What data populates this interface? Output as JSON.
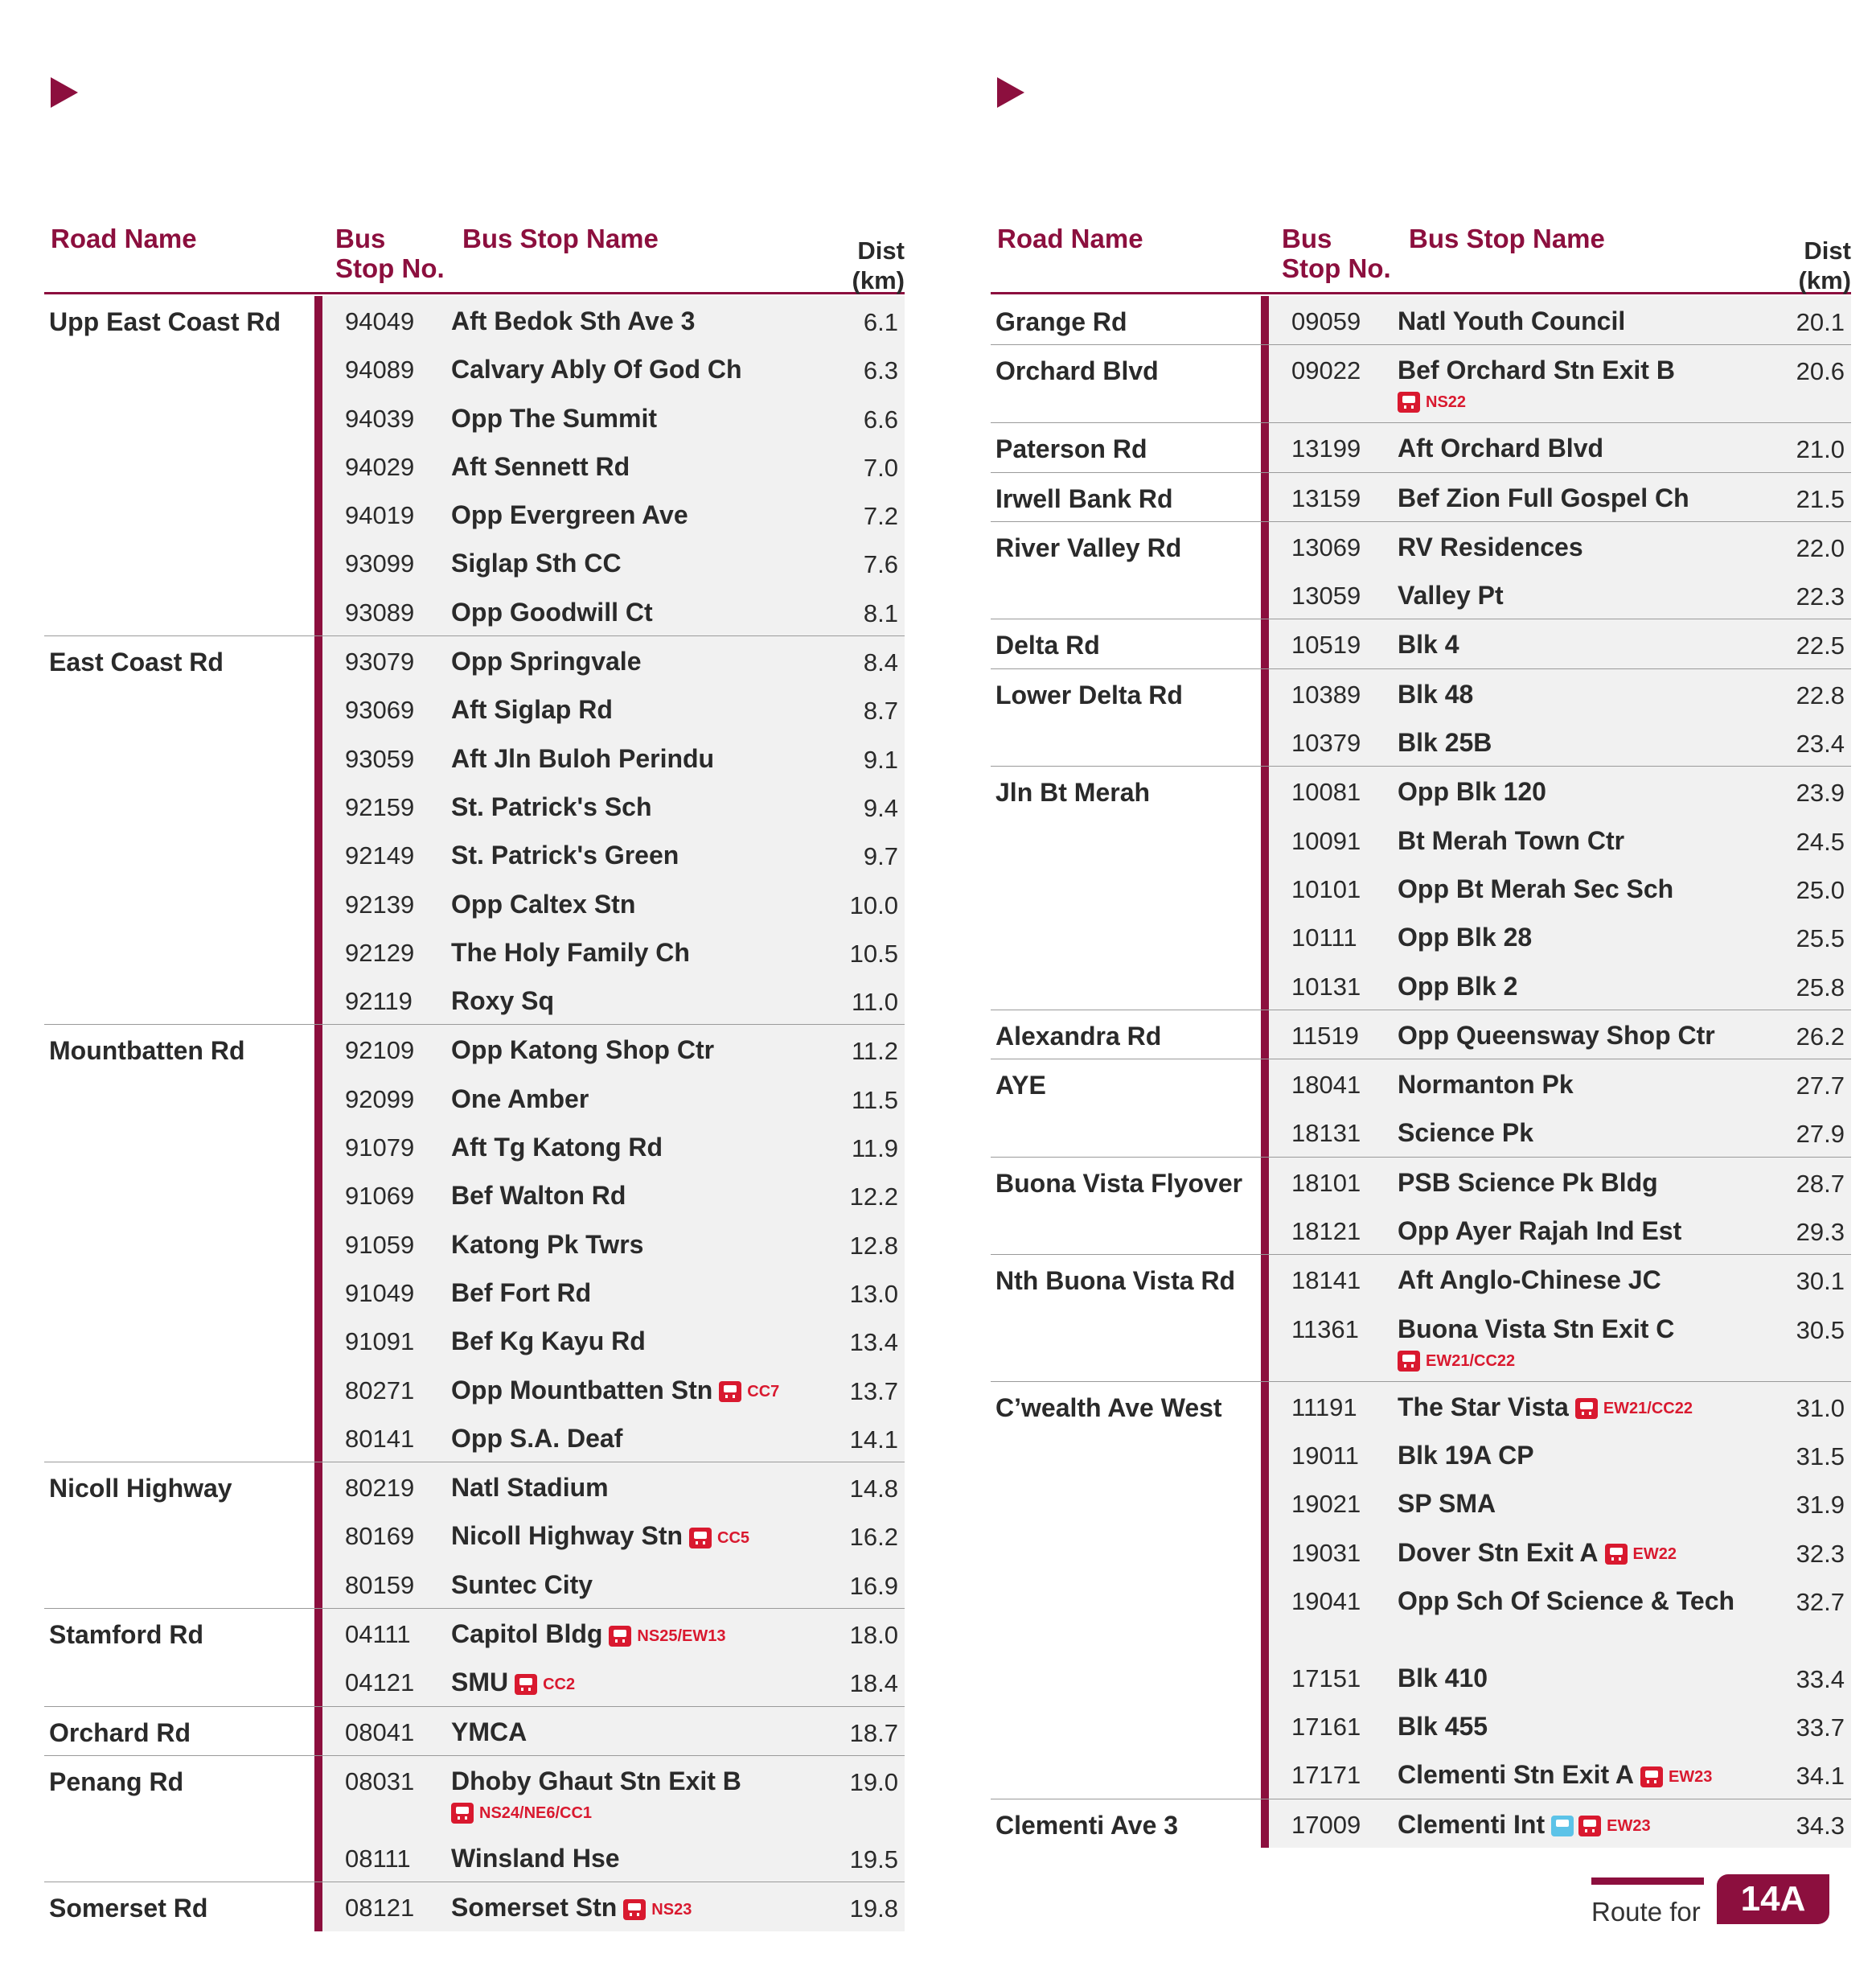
{
  "headers": {
    "road": "Road Name",
    "busno": "Bus\nStop No.",
    "stop": "Bus Stop Name",
    "dist": "Dist\n(km)"
  },
  "left": [
    {
      "road": "Upp East Coast Rd",
      "rows": [
        {
          "no": "94049",
          "name": "Aft Bedok Sth Ave 3",
          "dist": "6.1"
        },
        {
          "no": "94089",
          "name": "Calvary Ably Of God Ch",
          "dist": "6.3"
        },
        {
          "no": "94039",
          "name": "Opp The Summit",
          "dist": "6.6"
        },
        {
          "no": "94029",
          "name": "Aft Sennett Rd",
          "dist": "7.0"
        },
        {
          "no": "94019",
          "name": "Opp Evergreen Ave",
          "dist": "7.2"
        },
        {
          "no": "93099",
          "name": "Siglap Sth CC",
          "dist": "7.6"
        },
        {
          "no": "93089",
          "name": "Opp Goodwill Ct",
          "dist": "8.1"
        }
      ]
    },
    {
      "road": "East Coast Rd",
      "rows": [
        {
          "no": "93079",
          "name": "Opp Springvale",
          "dist": "8.4"
        },
        {
          "no": "93069",
          "name": "Aft Siglap Rd",
          "dist": "8.7"
        },
        {
          "no": "93059",
          "name": "Aft Jln Buloh Perindu",
          "dist": "9.1"
        },
        {
          "no": "92159",
          "name": "St. Patrick's Sch",
          "dist": "9.4"
        },
        {
          "no": "92149",
          "name": "St. Patrick's Green",
          "dist": "9.7"
        },
        {
          "no": "92139",
          "name": "Opp Caltex Stn",
          "dist": "10.0"
        },
        {
          "no": "92129",
          "name": "The Holy Family Ch",
          "dist": "10.5"
        },
        {
          "no": "92119",
          "name": "Roxy Sq",
          "dist": "11.0"
        }
      ]
    },
    {
      "road": "Mountbatten Rd",
      "rows": [
        {
          "no": "92109",
          "name": "Opp Katong Shop Ctr",
          "dist": "11.2"
        },
        {
          "no": "92099",
          "name": "One Amber",
          "dist": "11.5"
        },
        {
          "no": "91079",
          "name": "Aft Tg Katong Rd",
          "dist": "11.9"
        },
        {
          "no": "91069",
          "name": "Bef Walton Rd",
          "dist": "12.2"
        },
        {
          "no": "91059",
          "name": "Katong Pk Twrs",
          "dist": "12.8"
        },
        {
          "no": "91049",
          "name": "Bef Fort Rd",
          "dist": "13.0"
        },
        {
          "no": "91091",
          "name": "Bef Kg Kayu Rd",
          "dist": "13.4"
        },
        {
          "no": "80271",
          "name": "Opp Mountbatten Stn",
          "dist": "13.7",
          "mrt": "CC7"
        },
        {
          "no": "80141",
          "name": "Opp S.A. Deaf",
          "dist": "14.1"
        }
      ]
    },
    {
      "road": "Nicoll Highway",
      "rows": [
        {
          "no": "80219",
          "name": "Natl Stadium",
          "dist": "14.8"
        },
        {
          "no": "80169",
          "name": "Nicoll Highway Stn",
          "dist": "16.2",
          "mrt": "CC5"
        },
        {
          "no": "80159",
          "name": "Suntec City",
          "dist": "16.9"
        }
      ]
    },
    {
      "road": "Stamford Rd",
      "rows": [
        {
          "no": "04111",
          "name": "Capitol Bldg",
          "dist": "18.0",
          "mrt": "NS25/EW13"
        },
        {
          "no": "04121",
          "name": "SMU",
          "dist": "18.4",
          "mrt": "CC2"
        }
      ]
    },
    {
      "road": "Orchard Rd",
      "rows": [
        {
          "no": "08041",
          "name": "YMCA",
          "dist": "18.7"
        }
      ]
    },
    {
      "road": "Penang Rd",
      "rows": [
        {
          "no": "08031",
          "name": "Dhoby Ghaut Stn Exit B",
          "dist": "19.0",
          "mrt_sub": "NS24/NE6/CC1"
        },
        {
          "no": "08111",
          "name": "Winsland Hse",
          "dist": "19.5"
        }
      ]
    },
    {
      "road": "Somerset Rd",
      "rows": [
        {
          "no": "08121",
          "name": "Somerset Stn",
          "dist": "19.8",
          "mrt": "NS23"
        }
      ]
    }
  ],
  "right": [
    {
      "road": "Grange Rd",
      "rows": [
        {
          "no": "09059",
          "name": "Natl Youth Council",
          "dist": "20.1"
        }
      ]
    },
    {
      "road": "Orchard Blvd",
      "rows": [
        {
          "no": "09022",
          "name": "Bef Orchard Stn Exit B",
          "dist": "20.6",
          "mrt_sub": "NS22"
        }
      ]
    },
    {
      "road": "Paterson Rd",
      "rows": [
        {
          "no": "13199",
          "name": "Aft Orchard Blvd",
          "dist": "21.0"
        }
      ]
    },
    {
      "road": "Irwell Bank Rd",
      "rows": [
        {
          "no": "13159",
          "name": "Bef Zion Full Gospel Ch",
          "dist": "21.5"
        }
      ]
    },
    {
      "road": "River Valley Rd",
      "rows": [
        {
          "no": "13069",
          "name": "RV Residences",
          "dist": "22.0"
        },
        {
          "no": "13059",
          "name": "Valley Pt",
          "dist": "22.3"
        }
      ]
    },
    {
      "road": "Delta Rd",
      "rows": [
        {
          "no": "10519",
          "name": "Blk 4",
          "dist": "22.5"
        }
      ]
    },
    {
      "road": "Lower Delta Rd",
      "rows": [
        {
          "no": "10389",
          "name": "Blk 48",
          "dist": "22.8"
        },
        {
          "no": "10379",
          "name": "Blk 25B",
          "dist": "23.4"
        }
      ]
    },
    {
      "road": "Jln Bt Merah",
      "rows": [
        {
          "no": "10081",
          "name": "Opp Blk 120",
          "dist": "23.9"
        },
        {
          "no": "10091",
          "name": "Bt Merah Town Ctr",
          "dist": "24.5"
        },
        {
          "no": "10101",
          "name": "Opp Bt Merah Sec Sch",
          "dist": "25.0"
        },
        {
          "no": "10111",
          "name": "Opp Blk 28",
          "dist": "25.5"
        },
        {
          "no": "10131",
          "name": "Opp Blk 2",
          "dist": "25.8"
        }
      ]
    },
    {
      "road": "Alexandra Rd",
      "rows": [
        {
          "no": "11519",
          "name": "Opp Queensway Shop Ctr",
          "dist": "26.2"
        }
      ]
    },
    {
      "road": "AYE",
      "rows": [
        {
          "no": "18041",
          "name": "Normanton Pk",
          "dist": "27.7"
        },
        {
          "no": "18131",
          "name": "Science Pk",
          "dist": "27.9"
        }
      ]
    },
    {
      "road": "Buona Vista Flyover",
      "rows": [
        {
          "no": "18101",
          "name": "PSB Science Pk Bldg",
          "dist": "28.7"
        },
        {
          "no": "18121",
          "name": "Opp Ayer Rajah Ind Est",
          "dist": "29.3"
        }
      ]
    },
    {
      "road": "Nth Buona Vista Rd",
      "rows": [
        {
          "no": "18141",
          "name": "Aft Anglo-Chinese JC",
          "dist": "30.1"
        },
        {
          "no": "11361",
          "name": "Buona Vista Stn Exit C",
          "dist": "30.5",
          "mrt_sub": "EW21/CC22"
        }
      ]
    },
    {
      "road": "C’wealth Ave West",
      "rows": [
        {
          "no": "11191",
          "name": "The Star Vista",
          "dist": "31.0",
          "mrt": "EW21/CC22"
        },
        {
          "no": "19011",
          "name": "Blk 19A CP",
          "dist": "31.5"
        },
        {
          "no": "19021",
          "name": "SP SMA",
          "dist": "31.9"
        },
        {
          "no": "19031",
          "name": "Dover Stn Exit A",
          "dist": "32.3",
          "mrt": "EW22"
        },
        {
          "no": "19041",
          "name": "Opp Sch Of Science & Tech",
          "dist": "32.7",
          "wrap": true
        },
        {
          "no": "17151",
          "name": "Blk 410",
          "dist": "33.4"
        },
        {
          "no": "17161",
          "name": "Blk 455",
          "dist": "33.7"
        },
        {
          "no": "17171",
          "name": "Clementi Stn Exit A",
          "dist": "34.1",
          "mrt": "EW23"
        }
      ]
    },
    {
      "road": "Clementi Ave 3",
      "rows": [
        {
          "no": "17009",
          "name": "Clementi Int",
          "dist": "34.3",
          "mrt": "EW23",
          "interchange": true
        }
      ]
    }
  ],
  "footer": {
    "label": "Route for",
    "route": "14A"
  }
}
